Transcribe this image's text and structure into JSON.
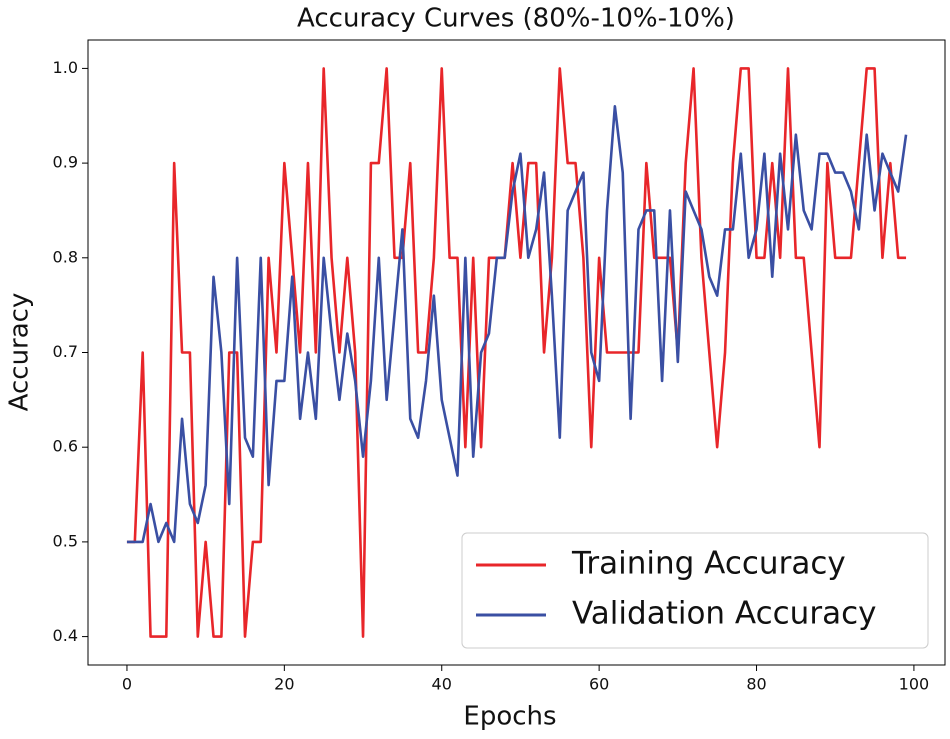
{
  "chart_data": {
    "type": "line",
    "title": "Accuracy Curves (80%-10%-10%)",
    "x_label": "Epochs",
    "y_label": "Accuracy",
    "x": [
      0,
      1,
      2,
      3,
      4,
      5,
      6,
      7,
      8,
      9,
      10,
      11,
      12,
      13,
      14,
      15,
      16,
      17,
      18,
      19,
      20,
      21,
      22,
      23,
      24,
      25,
      26,
      27,
      28,
      29,
      30,
      31,
      32,
      33,
      34,
      35,
      36,
      37,
      38,
      39,
      40,
      41,
      42,
      43,
      44,
      45,
      46,
      47,
      48,
      49,
      50,
      51,
      52,
      53,
      54,
      55,
      56,
      57,
      58,
      59,
      60,
      61,
      62,
      63,
      64,
      65,
      66,
      67,
      68,
      69,
      70,
      71,
      72,
      73,
      74,
      75,
      76,
      77,
      78,
      79,
      80,
      81,
      82,
      83,
      84,
      85,
      86,
      87,
      88,
      89,
      90,
      91,
      92,
      93,
      94,
      95,
      96,
      97,
      98,
      99
    ],
    "series": [
      {
        "name": "Training Accuracy",
        "color": "#e8262a",
        "values": [
          0.5,
          0.5,
          0.7,
          0.4,
          0.4,
          0.4,
          0.9,
          0.7,
          0.7,
          0.4,
          0.5,
          0.4,
          0.4,
          0.7,
          0.7,
          0.4,
          0.5,
          0.5,
          0.8,
          0.7,
          0.9,
          0.8,
          0.7,
          0.9,
          0.7,
          1.0,
          0.8,
          0.7,
          0.8,
          0.7,
          0.4,
          0.9,
          0.9,
          1.0,
          0.8,
          0.8,
          0.9,
          0.7,
          0.7,
          0.8,
          1.0,
          0.8,
          0.8,
          0.6,
          0.8,
          0.6,
          0.8,
          0.8,
          0.8,
          0.9,
          0.8,
          0.9,
          0.9,
          0.7,
          0.8,
          1.0,
          0.9,
          0.9,
          0.8,
          0.6,
          0.8,
          0.7,
          0.7,
          0.7,
          0.7,
          0.7,
          0.9,
          0.8,
          0.8,
          0.8,
          0.7,
          0.9,
          1.0,
          0.8,
          0.7,
          0.6,
          0.7,
          0.9,
          1.0,
          1.0,
          0.8,
          0.8,
          0.9,
          0.8,
          1.0,
          0.8,
          0.8,
          0.7,
          0.6,
          0.9,
          0.8,
          0.8,
          0.8,
          0.9,
          1.0,
          1.0,
          0.8,
          0.9,
          0.8,
          0.8
        ]
      },
      {
        "name": "Validation Accuracy",
        "color": "#3a4fa3",
        "values": [
          0.5,
          0.5,
          0.5,
          0.54,
          0.5,
          0.52,
          0.5,
          0.63,
          0.54,
          0.52,
          0.56,
          0.78,
          0.7,
          0.54,
          0.8,
          0.61,
          0.59,
          0.8,
          0.56,
          0.67,
          0.67,
          0.78,
          0.63,
          0.7,
          0.63,
          0.8,
          0.72,
          0.65,
          0.72,
          0.67,
          0.59,
          0.67,
          0.8,
          0.65,
          0.74,
          0.83,
          0.63,
          0.61,
          0.67,
          0.76,
          0.65,
          0.61,
          0.57,
          0.8,
          0.59,
          0.7,
          0.72,
          0.8,
          0.8,
          0.87,
          0.91,
          0.8,
          0.83,
          0.89,
          0.76,
          0.61,
          0.85,
          0.87,
          0.89,
          0.7,
          0.67,
          0.85,
          0.96,
          0.89,
          0.63,
          0.83,
          0.85,
          0.85,
          0.67,
          0.85,
          0.69,
          0.87,
          0.85,
          0.83,
          0.78,
          0.76,
          0.83,
          0.83,
          0.91,
          0.8,
          0.83,
          0.91,
          0.78,
          0.91,
          0.83,
          0.93,
          0.85,
          0.83,
          0.91,
          0.91,
          0.89,
          0.89,
          0.87,
          0.83,
          0.93,
          0.85,
          0.91,
          0.89,
          0.87,
          0.93
        ]
      }
    ],
    "xlim": [
      -4.95,
      103.95
    ],
    "ylim": [
      0.37,
      1.03
    ],
    "xticks": [
      0,
      20,
      40,
      60,
      80,
      100
    ],
    "yticks": [
      0.4,
      0.5,
      0.6,
      0.7,
      0.8,
      0.9,
      {
        "value": 1.0,
        "label": "1.0"
      }
    ],
    "legend": "lower right"
  }
}
